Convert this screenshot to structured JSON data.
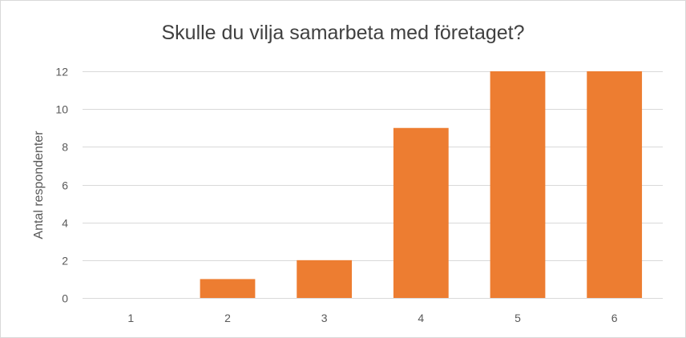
{
  "chart_data": {
    "type": "bar",
    "title": "Skulle du vilja samarbeta med företaget?",
    "xlabel": "",
    "ylabel": "Antal respondenter",
    "categories": [
      "1",
      "2",
      "3",
      "4",
      "5",
      "6"
    ],
    "values": [
      0,
      1,
      2,
      9,
      12,
      12
    ],
    "ylim": [
      0,
      12
    ],
    "yticks": [
      0,
      2,
      4,
      6,
      8,
      10,
      12
    ],
    "grid": true,
    "legend": "none",
    "bar_color": "#ED7D31"
  }
}
